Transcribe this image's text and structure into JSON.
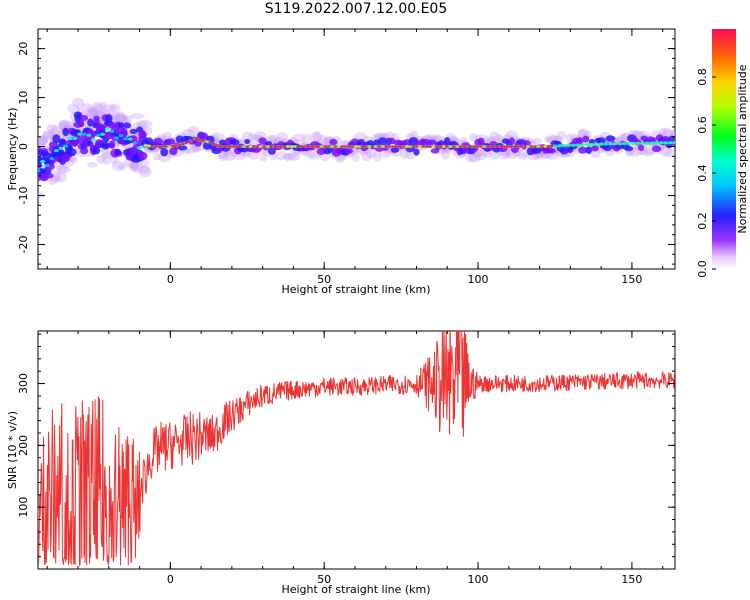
{
  "title": "S119.2022.007.12.00.E05",
  "chart_data": [
    {
      "type": "heatmap",
      "xlabel": "Height of straight line (km)",
      "ylabel": "Frequency (Hz)",
      "xlim": [
        -43,
        164
      ],
      "ylim": [
        -25,
        24
      ],
      "x_ticks": [
        0,
        50,
        100,
        150
      ],
      "y_ticks": [
        -20,
        -10,
        0,
        10,
        20
      ],
      "colorbar": {
        "label": "Normalized spectral amplitude",
        "range": [
          0,
          1
        ],
        "ticks": [
          0.0,
          0.2,
          0.4,
          0.6,
          0.8
        ],
        "colormap": "gist_rainbow_r"
      },
      "ridge": {
        "x": [
          -42,
          -38,
          -34,
          -30,
          -26,
          -22,
          -18,
          -14,
          -10,
          -6,
          0,
          4,
          8,
          12,
          16,
          20,
          40,
          60,
          80,
          100,
          120,
          140,
          164
        ],
        "y": [
          -4,
          -2,
          0,
          3,
          2,
          3,
          2,
          1,
          0.5,
          0,
          0,
          0.5,
          1.5,
          1,
          0,
          0,
          0,
          0,
          0,
          0,
          0,
          0.5,
          0.8
        ]
      }
    },
    {
      "type": "line",
      "xlabel": "Height of straight line (km)",
      "ylabel": "SNR (10 * v/v)",
      "xlim": [
        -43,
        164
      ],
      "ylim": [
        0,
        385
      ],
      "x_ticks": [
        0,
        50,
        100,
        150
      ],
      "y_ticks": [
        100,
        200,
        300
      ],
      "series": [
        {
          "color": "#ee3333",
          "x": [
            -43,
            -40,
            -36,
            -33,
            -30,
            -26,
            -22,
            -18,
            -14,
            -11,
            -9,
            -6,
            -3,
            0,
            3,
            6,
            10,
            14,
            18,
            22,
            26,
            30,
            35,
            40,
            50,
            60,
            70,
            80,
            86,
            90,
            93,
            95,
            97,
            100,
            110,
            120,
            130,
            140,
            150,
            160,
            164
          ],
          "y": [
            70,
            110,
            120,
            115,
            110,
            100,
            100,
            95,
            90,
            85,
            140,
            185,
            195,
            200,
            205,
            210,
            215,
            215,
            240,
            255,
            270,
            280,
            285,
            290,
            295,
            295,
            298,
            300,
            300,
            300,
            300,
            300,
            300,
            300,
            300,
            300,
            302,
            303,
            305,
            305,
            305
          ],
          "noise": [
            120,
            160,
            170,
            175,
            170,
            180,
            180,
            160,
            170,
            120,
            40,
            40,
            45,
            40,
            40,
            45,
            40,
            35,
            30,
            25,
            22,
            20,
            18,
            16,
            16,
            15,
            15,
            18,
            60,
            120,
            160,
            120,
            50,
            15,
            14,
            14,
            14,
            14,
            14,
            14,
            14
          ]
        }
      ]
    }
  ]
}
